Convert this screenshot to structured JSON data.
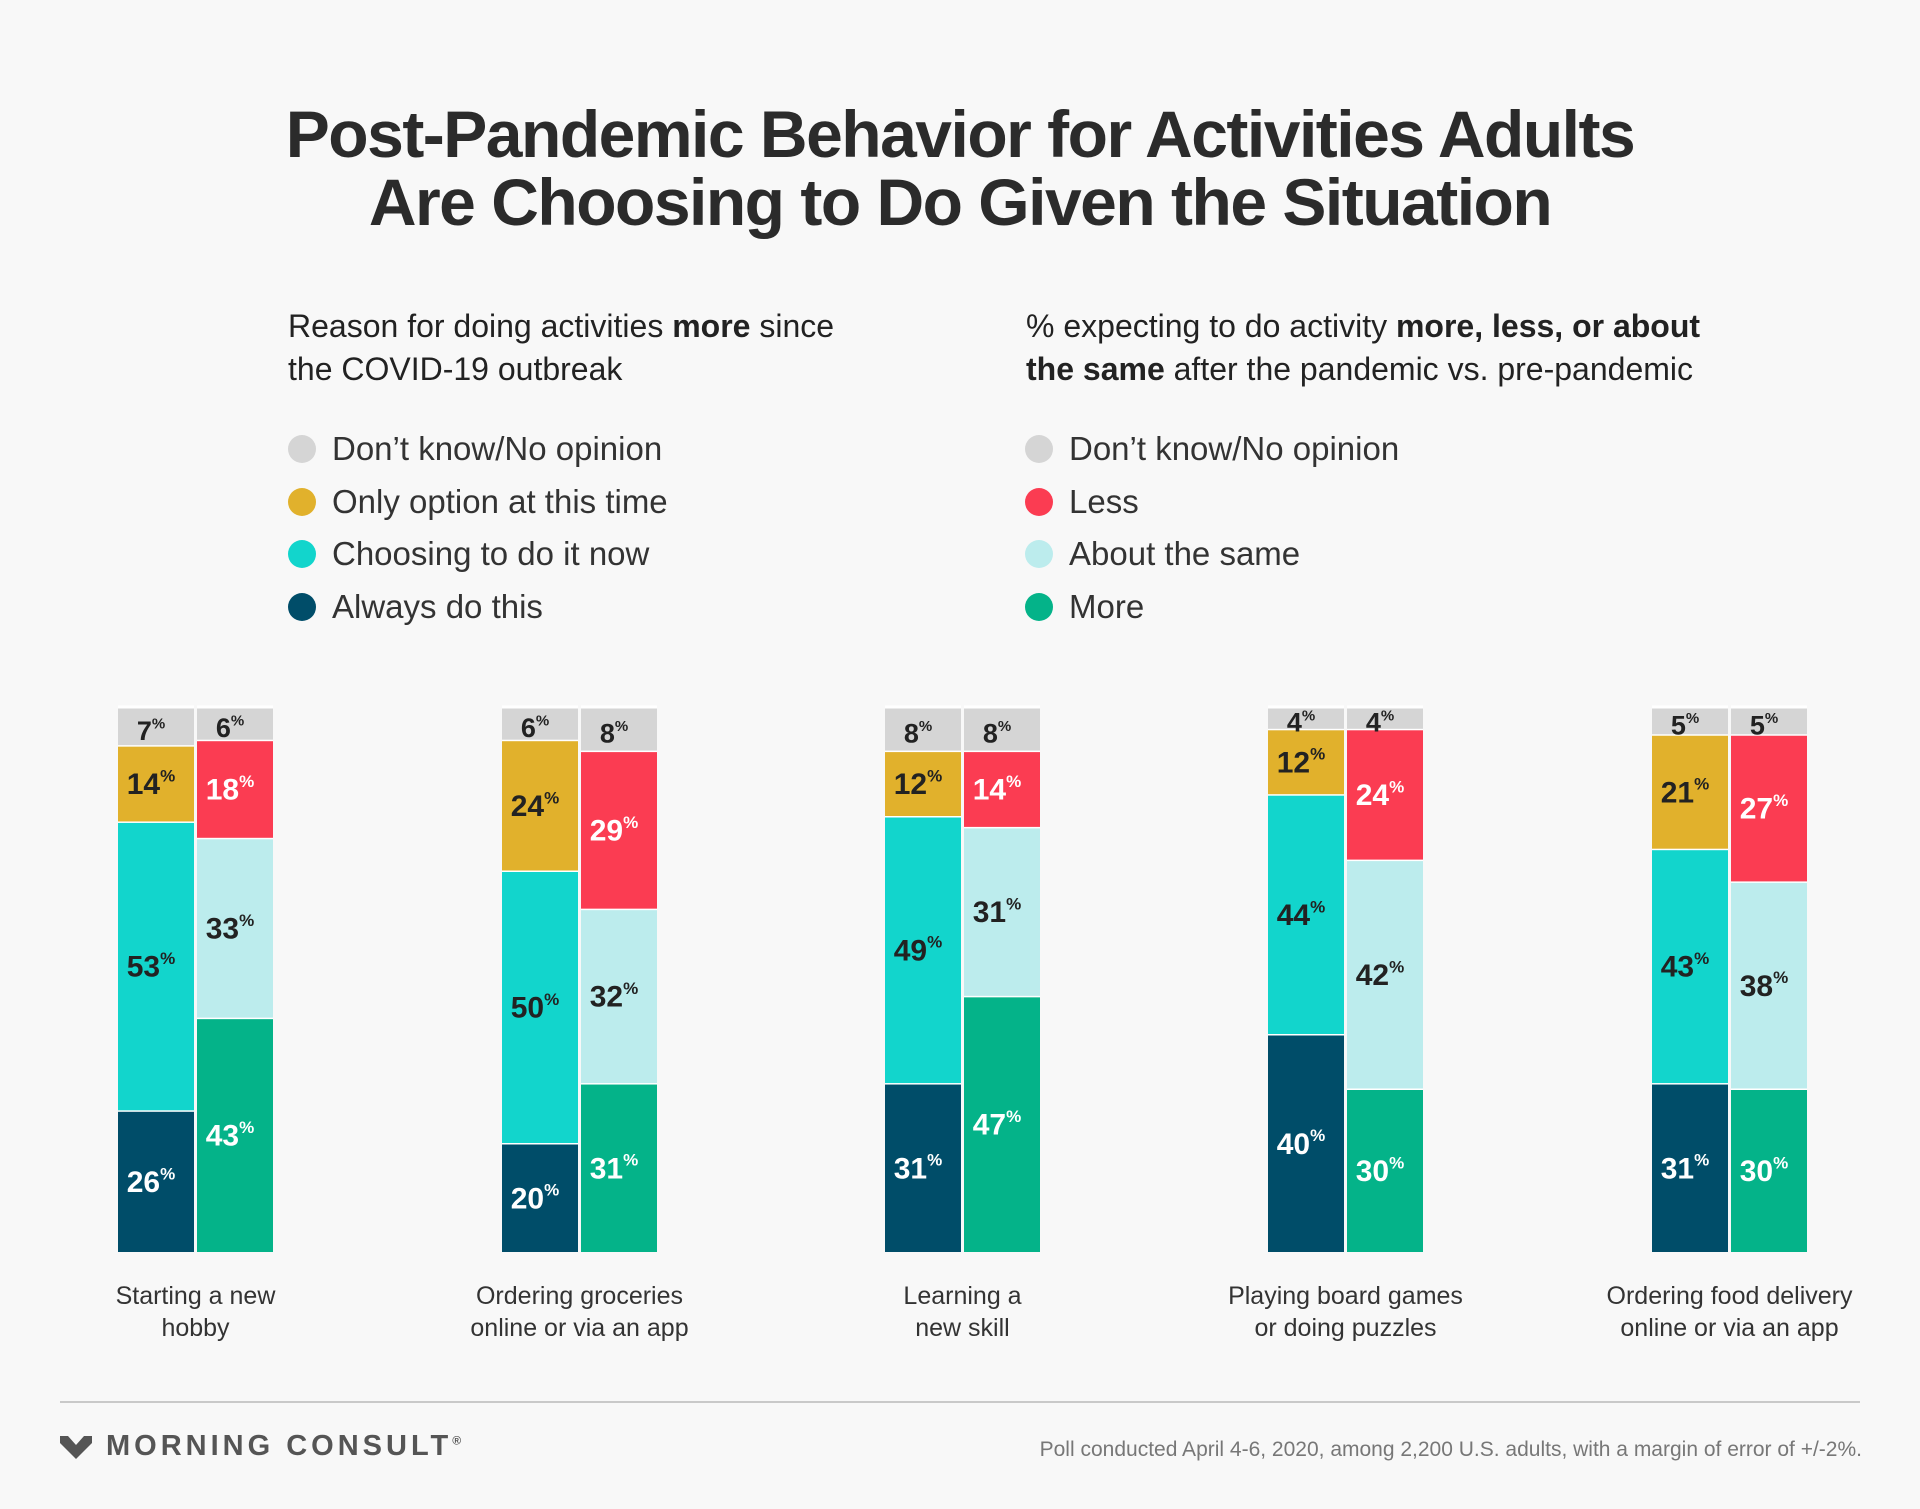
{
  "title": {
    "line1": "Post-Pandemic Behavior for Activities Adults",
    "line2": "Are Choosing to Do Given the Situation"
  },
  "left_subhead": {
    "pre": "Reason for doing activities ",
    "bold": "more",
    "post": " since",
    "line2": "the COVID-19 outbreak"
  },
  "right_subhead": {
    "pre": "% expecting to do activity ",
    "bold": "more, less, or about",
    "bold2": "the same",
    "post": " after the pandemic vs. pre-pandemic"
  },
  "left_legend": [
    {
      "label": "Don’t know/No opinion",
      "color": "#d5d5d5"
    },
    {
      "label": "Only option at this time",
      "color": "#e1b12c"
    },
    {
      "label": "Choosing to do it now",
      "color": "#12d5cc"
    },
    {
      "label": "Always do this",
      "color": "#004d69"
    }
  ],
  "right_legend": [
    {
      "label": "Don’t know/No opinion",
      "color": "#d5d5d5"
    },
    {
      "label": "Less",
      "color": "#fb3c52"
    },
    {
      "label": "About the same",
      "color": "#bceced"
    },
    {
      "label": "More",
      "color": "#04b389"
    }
  ],
  "chart_data": {
    "type": "bar",
    "stacked": true,
    "percent_suffix": "%",
    "categories": [
      "Starting a new hobby",
      "Ordering groceries online or via an app",
      "Learning a new skill",
      "Playing board games or doing puzzles",
      "Ordering food delivery online or via an app"
    ],
    "category_lines": [
      [
        "Starting a new",
        "hobby"
      ],
      [
        "Ordering groceries",
        "online or via an app"
      ],
      [
        "Learning a",
        "new skill"
      ],
      [
        "Playing board games",
        "or doing puzzles"
      ],
      [
        "Ordering food delivery",
        "online or via an app"
      ]
    ],
    "reason_series": [
      {
        "name": "Always do this",
        "values": [
          26,
          20,
          31,
          40,
          31
        ],
        "color": "#004d69",
        "text_color": "#ffffff"
      },
      {
        "name": "Choosing to do it now",
        "values": [
          53,
          50,
          49,
          44,
          43
        ],
        "color": "#12d5cc",
        "text_color": "#222222"
      },
      {
        "name": "Only option at this time",
        "values": [
          14,
          24,
          12,
          12,
          21
        ],
        "color": "#e1b12c",
        "text_color": "#222222"
      },
      {
        "name": "Don’t know/No opinion",
        "values": [
          7,
          6,
          8,
          4,
          5
        ],
        "color": "#d5d5d5",
        "text_color": "#222222"
      }
    ],
    "expectation_series": [
      {
        "name": "More",
        "values": [
          43,
          31,
          47,
          30,
          30
        ],
        "color": "#04b389",
        "text_color": "#ffffff"
      },
      {
        "name": "About the same",
        "values": [
          33,
          32,
          31,
          42,
          38
        ],
        "color": "#bceced",
        "text_color": "#222222"
      },
      {
        "name": "Less",
        "values": [
          18,
          29,
          14,
          24,
          27
        ],
        "color": "#fb3c52",
        "text_color": "#ffffff"
      },
      {
        "name": "Don’t know/No opinion",
        "values": [
          6,
          8,
          8,
          4,
          5
        ],
        "color": "#d5d5d5",
        "text_color": "#222222"
      }
    ]
  },
  "footer": {
    "brand": "MORNING CONSULT",
    "trademark": "®",
    "note": "Poll conducted April 4-6, 2020, among 2,200 U.S. adults, with a margin of error of +/-2%."
  }
}
